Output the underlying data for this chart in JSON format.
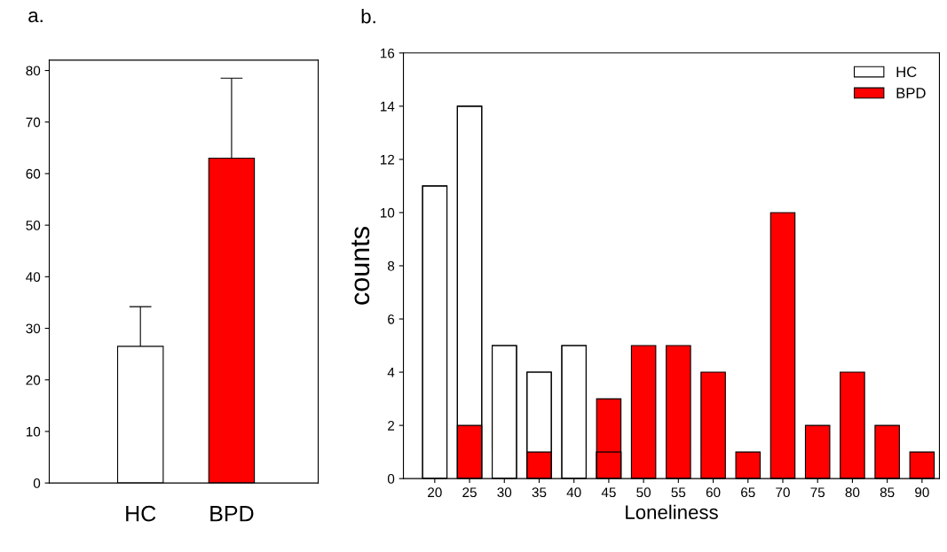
{
  "chart_data": [
    {
      "type": "bar",
      "title": "a.",
      "categories": [
        "HC",
        "BPD"
      ],
      "values": [
        26.5,
        63
      ],
      "colors": [
        "#ffffff",
        "#ff0000"
      ],
      "errors": [
        [
          26.5,
          34.2
        ],
        [
          63,
          78.5
        ]
      ],
      "ylim": [
        0,
        82
      ],
      "yticks": [
        0,
        10,
        20,
        30,
        40,
        50,
        60,
        70,
        80
      ],
      "grid": false,
      "legend": false
    },
    {
      "type": "bar",
      "title": "b.",
      "xlabel": "Loneliness",
      "ylabel": "counts",
      "categories": [
        "20",
        "25",
        "30",
        "35",
        "40",
        "45",
        "50",
        "55",
        "60",
        "65",
        "70",
        "75",
        "80",
        "85",
        "90"
      ],
      "series": [
        {
          "name": "HC",
          "color": "#ffffff",
          "values": [
            11,
            14,
            5,
            4,
            5,
            1,
            0,
            0,
            0,
            0,
            0,
            0,
            0,
            0,
            0
          ]
        },
        {
          "name": "BPD",
          "color": "#ff0000",
          "values": [
            0,
            2,
            0,
            1,
            0,
            3,
            5,
            5,
            4,
            1,
            10,
            2,
            4,
            2,
            1
          ]
        }
      ],
      "ylim": [
        0,
        16
      ],
      "yticks": [
        0,
        2,
        4,
        6,
        8,
        10,
        12,
        14,
        16
      ],
      "grid": false,
      "legend": "top right"
    }
  ]
}
